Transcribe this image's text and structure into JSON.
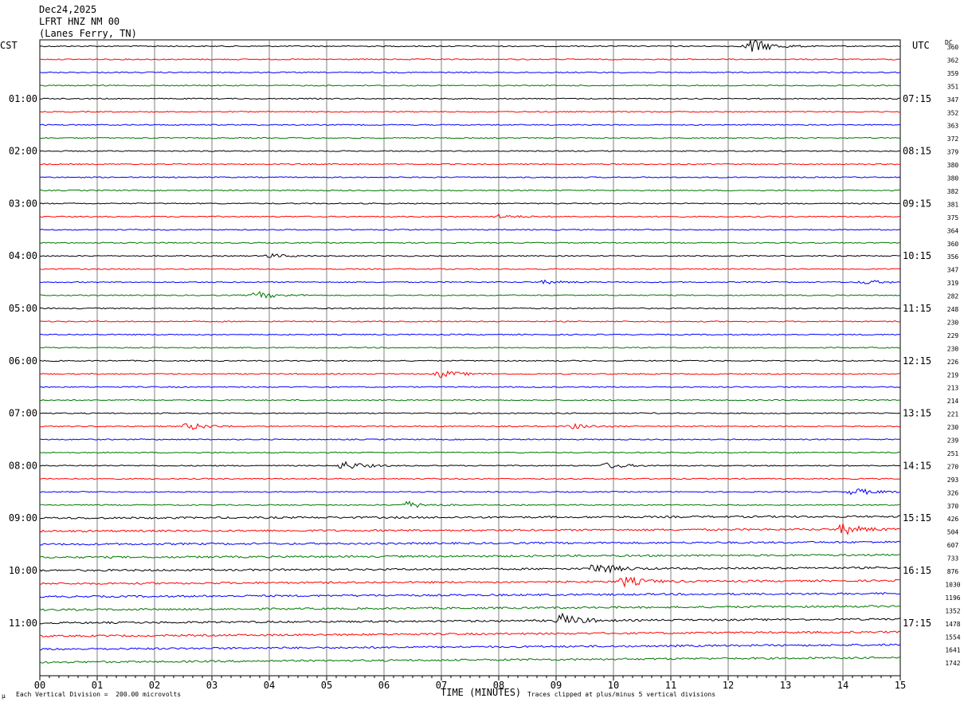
{
  "header": {
    "date": "Dec24,2025",
    "station": "LFRT HNZ NM 00",
    "location": "(Lanes Ferry, TN)"
  },
  "left_axis_title": "CST",
  "right_axis_title": "UTC",
  "dc_title": "DC",
  "footer": {
    "scale_note": "Each Vertical Division =  200.00 microvolts",
    "xlabel": "TIME (MINUTES)",
    "clip_note": "Traces clipped at plus/minus 5 vertical divisions",
    "corner_mark": "μ"
  },
  "colors": {
    "black": "#000000",
    "red": "#ff0000",
    "blue": "#0000ff",
    "green": "#007700",
    "grid": "#7f7f7f"
  },
  "chart_data": {
    "type": "line",
    "title": "LFRT HNZ NM 00",
    "xlabel": "TIME (MINUTES)",
    "xlim": [
      0,
      15
    ],
    "x_ticks": [
      "00",
      "01",
      "02",
      "03",
      "04",
      "05",
      "06",
      "07",
      "08",
      "09",
      "10",
      "11",
      "12",
      "13",
      "14",
      "15"
    ],
    "trace_colors_cycle": [
      "black",
      "red",
      "blue",
      "green"
    ],
    "left_hour_labels": [
      "01:00",
      "02:00",
      "03:00",
      "04:00",
      "05:00",
      "06:00",
      "07:00",
      "08:00",
      "09:00",
      "10:00",
      "11:00"
    ],
    "right_hour_labels": [
      "07:15",
      "08:15",
      "09:15",
      "10:15",
      "11:15",
      "12:15",
      "13:15",
      "14:15",
      "15:15",
      "16:15",
      "17:15"
    ],
    "dc_offsets": [
      360,
      362,
      359,
      351,
      347,
      352,
      363,
      372,
      379,
      380,
      380,
      382,
      381,
      375,
      364,
      360,
      356,
      347,
      319,
      282,
      248,
      230,
      229,
      230,
      226,
      219,
      213,
      214,
      221,
      230,
      239,
      251,
      270,
      293,
      326,
      370,
      426,
      504,
      607,
      733,
      876,
      1030,
      1196,
      1352,
      1478,
      1554,
      1641,
      1742
    ],
    "events": [
      {
        "trace": 0,
        "minute": 12.4,
        "amplitude": 1.0
      },
      {
        "trace": 13,
        "minute": 8.0,
        "amplitude": 0.25
      },
      {
        "trace": 16,
        "minute": 4.0,
        "amplitude": 0.25
      },
      {
        "trace": 18,
        "minute": 8.8,
        "amplitude": 0.2
      },
      {
        "trace": 18,
        "minute": 14.4,
        "amplitude": 0.25
      },
      {
        "trace": 19,
        "minute": 3.8,
        "amplitude": 0.45
      },
      {
        "trace": 25,
        "minute": 7.0,
        "amplitude": 0.45
      },
      {
        "trace": 29,
        "minute": 2.6,
        "amplitude": 0.45
      },
      {
        "trace": 29,
        "minute": 9.3,
        "amplitude": 0.3
      },
      {
        "trace": 32,
        "minute": 5.3,
        "amplitude": 0.55
      },
      {
        "trace": 32,
        "minute": 9.9,
        "amplitude": 0.35
      },
      {
        "trace": 34,
        "minute": 14.2,
        "amplitude": 0.45
      },
      {
        "trace": 35,
        "minute": 6.4,
        "amplitude": 0.45
      },
      {
        "trace": 37,
        "minute": 14.0,
        "amplitude": 0.65
      },
      {
        "trace": 40,
        "minute": 9.7,
        "amplitude": 0.75
      },
      {
        "trace": 41,
        "minute": 10.2,
        "amplitude": 0.6
      },
      {
        "trace": 44,
        "minute": 9.1,
        "amplitude": 0.8
      }
    ]
  }
}
